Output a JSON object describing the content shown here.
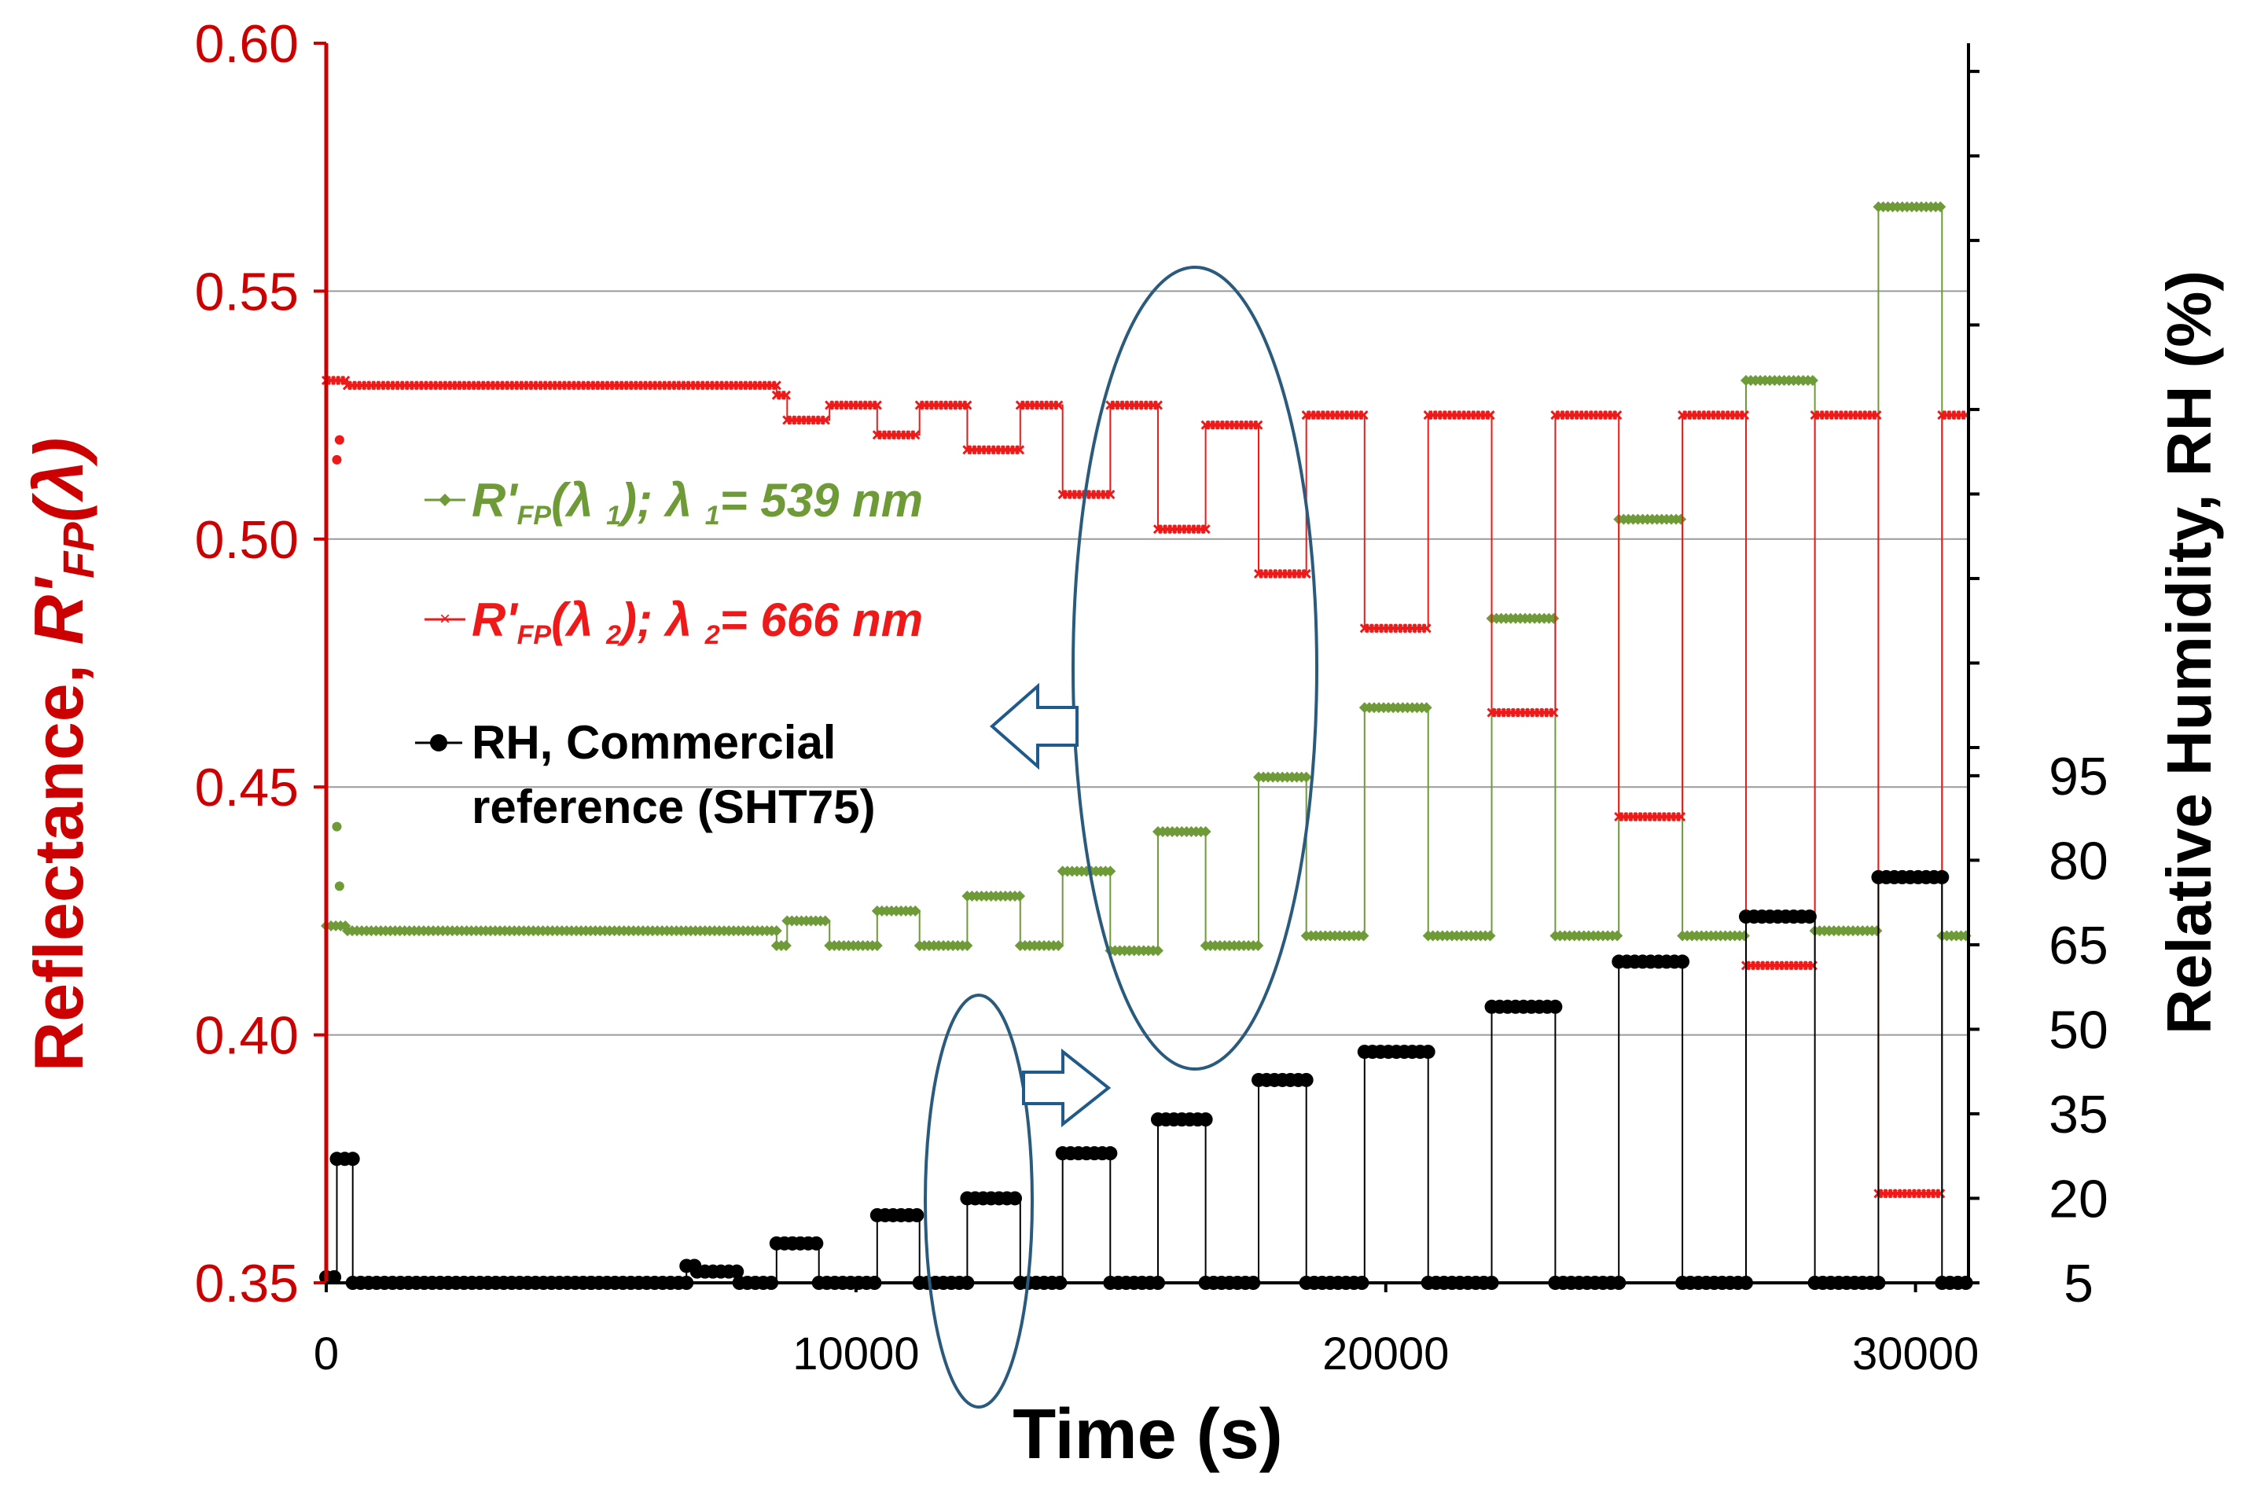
{
  "chart_data": {
    "type": "line",
    "x_axis": {
      "label": "Time (s)",
      "range": [
        0,
        31000
      ],
      "ticks": [
        0,
        10000,
        20000,
        30000
      ]
    },
    "y_axis_left": {
      "label_prefix": "Reflectance, ",
      "label_symbol": "R'",
      "label_sub": "FP",
      "label_suffix": "(λ)",
      "range": [
        0.35,
        0.6
      ],
      "ticks": [
        "0.35",
        "0.40",
        "0.45",
        "0.50",
        "0.55",
        "0.60"
      ],
      "gridlines": [
        0.4,
        0.45,
        0.5,
        0.55
      ]
    },
    "y_axis_right": {
      "label": "Relative Humidity, RH (%)",
      "range": [
        5,
        225
      ],
      "ticks": [
        5,
        20,
        35,
        50,
        65,
        80,
        95
      ]
    },
    "legend": {
      "green": {
        "main": "R'",
        "sub": "FP",
        "mid": "(λ ",
        "sub2": "1",
        "end": "); λ ",
        "sub3": "1",
        "value": "= 539 nm"
      },
      "red": {
        "main": "R'",
        "sub": "FP",
        "mid": "(λ ",
        "sub2": "2",
        "end": "); λ ",
        "sub3": "2",
        "value": "= 666 nm"
      },
      "black": {
        "line1": "RH, Commercial",
        "line2": "reference (SHT75)"
      }
    },
    "series": [
      {
        "name": "R'FP(λ1); λ1 = 539 nm",
        "axis": "left",
        "color": "#6e9a38",
        "segments": [
          [
            0,
            0.422
          ],
          [
            400,
            0.421
          ],
          [
            8500,
            0.418
          ],
          [
            8700,
            0.423
          ],
          [
            9500,
            0.418
          ],
          [
            10400,
            0.425
          ],
          [
            11200,
            0.418
          ],
          [
            12100,
            0.428
          ],
          [
            13100,
            0.418
          ],
          [
            13900,
            0.433
          ],
          [
            14800,
            0.417
          ],
          [
            15700,
            0.441
          ],
          [
            16600,
            0.418
          ],
          [
            17600,
            0.452
          ],
          [
            18500,
            0.42
          ],
          [
            19600,
            0.466
          ],
          [
            20800,
            0.42
          ],
          [
            22000,
            0.484
          ],
          [
            23200,
            0.42
          ],
          [
            24400,
            0.504
          ],
          [
            25600,
            0.42
          ],
          [
            26800,
            0.532
          ],
          [
            28100,
            0.421
          ],
          [
            29300,
            0.567
          ],
          [
            30500,
            0.42
          ]
        ],
        "extra": [
          [
            200,
            0.442
          ],
          [
            250,
            0.43
          ]
        ]
      },
      {
        "name": "R'FP(λ2); λ2 = 666 nm",
        "axis": "left",
        "color": "#ee1a1a",
        "segments": [
          [
            0,
            0.532
          ],
          [
            400,
            0.531
          ],
          [
            8500,
            0.529
          ],
          [
            8700,
            0.524
          ],
          [
            9500,
            0.527
          ],
          [
            10400,
            0.521
          ],
          [
            11200,
            0.527
          ],
          [
            12100,
            0.518
          ],
          [
            13100,
            0.527
          ],
          [
            13900,
            0.509
          ],
          [
            14800,
            0.527
          ],
          [
            15700,
            0.502
          ],
          [
            16600,
            0.523
          ],
          [
            17600,
            0.493
          ],
          [
            18500,
            0.525
          ],
          [
            19600,
            0.482
          ],
          [
            20800,
            0.525
          ],
          [
            22000,
            0.465
          ],
          [
            23200,
            0.525
          ],
          [
            24400,
            0.444
          ],
          [
            25600,
            0.525
          ],
          [
            26800,
            0.414
          ],
          [
            28100,
            0.525
          ],
          [
            29300,
            0.368
          ],
          [
            30500,
            0.525
          ]
        ],
        "extra": [
          [
            200,
            0.516
          ],
          [
            250,
            0.52
          ]
        ]
      },
      {
        "name": "RH, Commercial reference (SHT75)",
        "axis": "right",
        "color": "#000000",
        "segments": [
          [
            0,
            6
          ],
          [
            200,
            27
          ],
          [
            500,
            5
          ],
          [
            5000,
            5
          ],
          [
            6800,
            8
          ],
          [
            7000,
            7
          ],
          [
            7800,
            5
          ],
          [
            8500,
            12
          ],
          [
            8800,
            12
          ],
          [
            9300,
            5
          ],
          [
            10400,
            17
          ],
          [
            11000,
            17
          ],
          [
            11200,
            5
          ],
          [
            12100,
            20
          ],
          [
            13100,
            5
          ],
          [
            13900,
            28
          ],
          [
            14800,
            5
          ],
          [
            15700,
            34
          ],
          [
            16600,
            5
          ],
          [
            17600,
            41
          ],
          [
            18500,
            5
          ],
          [
            19600,
            46
          ],
          [
            20800,
            5
          ],
          [
            22000,
            54
          ],
          [
            23200,
            5
          ],
          [
            24400,
            62
          ],
          [
            25600,
            5
          ],
          [
            26800,
            70
          ],
          [
            28100,
            5
          ],
          [
            29300,
            77
          ],
          [
            30500,
            5
          ]
        ]
      }
    ],
    "annotations": {
      "ellipse_large": {
        "center_x": 16300,
        "center_y": 0.456,
        "description": "large ellipse with left arrow (reflectance axis)"
      },
      "ellipse_small": {
        "center_x": 12300,
        "center_y": 0.37,
        "description": "small ellipse with right arrow (RH axis)"
      }
    }
  }
}
